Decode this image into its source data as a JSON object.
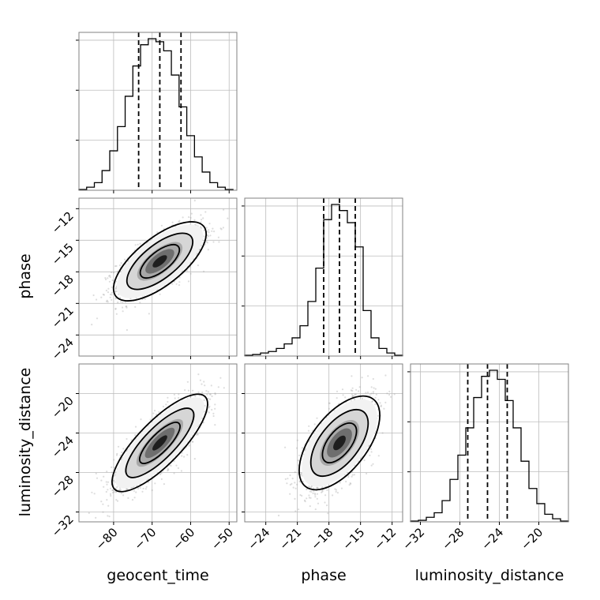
{
  "chart_data": {
    "type": "corner",
    "grid": true,
    "parameters": [
      "geocent_time",
      "phase",
      "luminosity_distance"
    ],
    "axis_labels": {
      "x": [
        "geocent_time",
        "phase",
        "luminosity_distance"
      ],
      "y": [
        "phase",
        "luminosity_distance"
      ]
    },
    "ranges": {
      "geocent_time": [
        -89,
        -48
      ],
      "phase": [
        -26,
        -11
      ],
      "luminosity_distance": [
        -33,
        -17
      ]
    },
    "ticks": {
      "geocent_time": [
        -80,
        -70,
        -60,
        -50
      ],
      "phase": [
        -24,
        -21,
        -18,
        -15,
        -12
      ],
      "luminosity_distance": [
        -32,
        -28,
        -24,
        -20
      ]
    },
    "histograms": [
      {
        "parameter": "geocent_time",
        "bin_edges": [
          -89,
          -87,
          -85,
          -83,
          -81,
          -79,
          -77,
          -75,
          -73,
          -71,
          -69,
          -67,
          -65,
          -63,
          -61,
          -59,
          -57,
          -55,
          -53,
          -51,
          -49
        ],
        "counts": [
          0.005,
          0.02,
          0.05,
          0.13,
          0.26,
          0.42,
          0.62,
          0.82,
          0.96,
          1.0,
          0.98,
          0.92,
          0.76,
          0.55,
          0.36,
          0.22,
          0.12,
          0.05,
          0.02,
          0.005
        ],
        "quantiles": [
          -73.5,
          -68,
          -62.5
        ]
      },
      {
        "parameter": "phase",
        "bin_edges": [
          -26,
          -25.25,
          -24.5,
          -23.75,
          -23,
          -22.25,
          -21.5,
          -20.75,
          -20,
          -19.25,
          -18.5,
          -17.75,
          -17,
          -16.25,
          -15.5,
          -14.75,
          -14,
          -13.25,
          -12.5,
          -11.75,
          -11
        ],
        "counts": [
          0.005,
          0.01,
          0.02,
          0.03,
          0.05,
          0.08,
          0.12,
          0.2,
          0.36,
          0.58,
          0.9,
          1.0,
          0.96,
          0.88,
          0.72,
          0.3,
          0.12,
          0.05,
          0.02,
          0.005
        ],
        "quantiles": [
          -18.5,
          -17,
          -15.5
        ]
      },
      {
        "parameter": "luminosity_distance",
        "bin_edges": [
          -33,
          -32.2,
          -31.4,
          -30.6,
          -29.8,
          -29,
          -28.2,
          -27.4,
          -26.6,
          -25.8,
          -25,
          -24.2,
          -23.4,
          -22.6,
          -21.8,
          -21,
          -20.2,
          -19.4,
          -18.6,
          -17.8,
          -17
        ],
        "counts": [
          0.005,
          0.01,
          0.03,
          0.06,
          0.14,
          0.28,
          0.44,
          0.62,
          0.82,
          0.96,
          1.0,
          0.94,
          0.8,
          0.62,
          0.4,
          0.22,
          0.12,
          0.05,
          0.02,
          0.005
        ],
        "quantiles": [
          -27.2,
          -25.2,
          -23.2
        ]
      }
    ],
    "scatter_panels": [
      {
        "x": "geocent_time",
        "y": "phase",
        "mean": [
          -68,
          -17
        ],
        "std": [
          5.5,
          1.6
        ],
        "correlation": 0.7,
        "point_color": "#9e9e9e"
      },
      {
        "x": "geocent_time",
        "y": "luminosity_distance",
        "mean": [
          -68,
          -25
        ],
        "std": [
          5.5,
          2.2
        ],
        "correlation": 0.8,
        "point_color": "#9e9e9e"
      },
      {
        "x": "phase",
        "y": "luminosity_distance",
        "mean": [
          -17,
          -25
        ],
        "std": [
          1.6,
          2.2
        ],
        "correlation": 0.6,
        "point_color": "#9e9e9e"
      }
    ],
    "contour_levels": 3,
    "colors": {
      "line": "#000000",
      "grid": "#bdbdbd",
      "axes": "#808080",
      "points": "#9e9e9e"
    }
  }
}
